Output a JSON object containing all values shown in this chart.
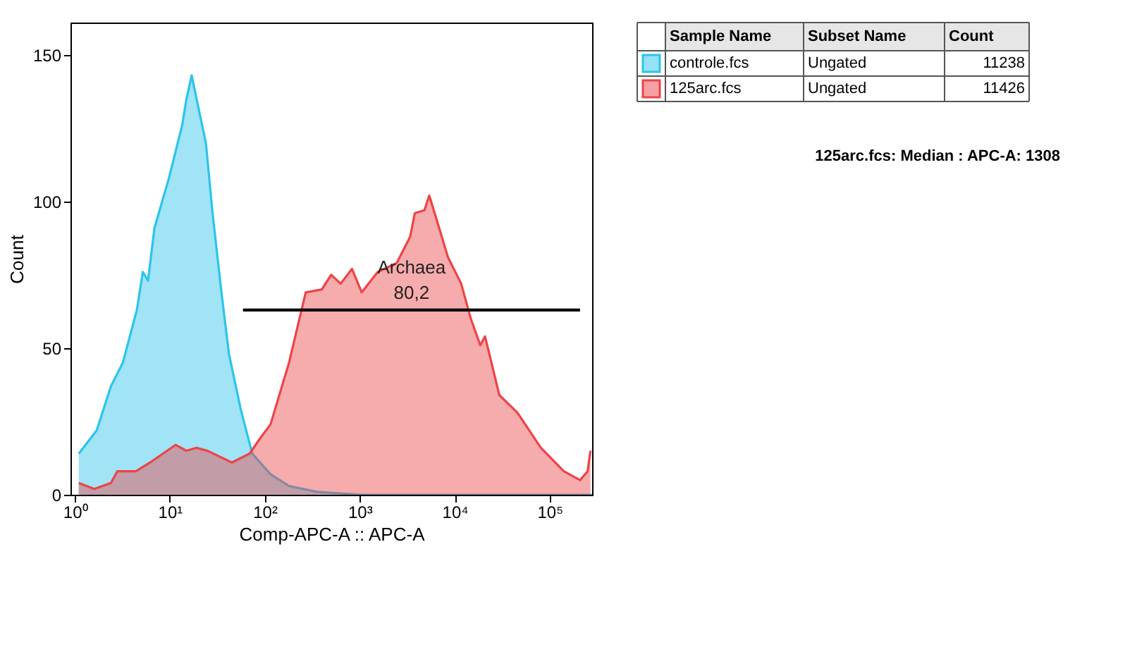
{
  "chart_data": {
    "type": "area",
    "xlabel": "Comp-APC-A :: APC-A",
    "ylabel": "Count",
    "log": "x",
    "xlim": [
      0.9,
      280000
    ],
    "ylim": [
      0,
      161
    ],
    "xticks": [
      {
        "value": 1,
        "label": "10⁰"
      },
      {
        "value": 10,
        "label": "10¹"
      },
      {
        "value": 100,
        "label": "10²"
      },
      {
        "value": 1000,
        "label": "10³"
      },
      {
        "value": 10000,
        "label": "10⁴"
      },
      {
        "value": 100000,
        "label": "10⁵"
      }
    ],
    "yticks": [
      0,
      50,
      100,
      150
    ],
    "grid": false,
    "legend": "right",
    "series": [
      {
        "name": "controle.fcs",
        "color": "#2cc4ec",
        "x": [
          1.1,
          1.7,
          2.4,
          3.2,
          4.5,
          5.2,
          5.9,
          6.9,
          9.8,
          11.5,
          13.5,
          15,
          17,
          20,
          24,
          28,
          35,
          42,
          56,
          74,
          115,
          180,
          355,
          1000,
          10000,
          280000
        ],
        "values": [
          14,
          22,
          37,
          45,
          63,
          76,
          73,
          91,
          108,
          117,
          126,
          135,
          143,
          132,
          120,
          97,
          69,
          48,
          29,
          14,
          7,
          3,
          1,
          0,
          0,
          0
        ]
      },
      {
        "name": "125arc.fcs",
        "color": "#ec4448",
        "x": [
          1.1,
          1.6,
          2.4,
          2.8,
          4.4,
          6.2,
          11.5,
          15,
          19,
          25,
          45,
          69,
          93,
          115,
          180,
          270,
          400,
          500,
          630,
          830,
          1050,
          1550,
          2450,
          3400,
          3800,
          4800,
          5400,
          6300,
          8500,
          11700,
          14800,
          18600,
          20900,
          29500,
          45700,
          81000,
          141000,
          209000,
          251000,
          269000
        ],
        "values": [
          4,
          2,
          4,
          8,
          8,
          11,
          17,
          15,
          16,
          15,
          11,
          14,
          20,
          24,
          45,
          69,
          70,
          75,
          72,
          77,
          69,
          76,
          79,
          88,
          96,
          97,
          102,
          95,
          81,
          72,
          60,
          51,
          54,
          34,
          28,
          16,
          8,
          5,
          8,
          15
        ]
      },
      {
        "type": "line",
        "color": "#000000",
        "x": [
          59,
          209000
        ],
        "values": [
          63,
          63
        ]
      }
    ],
    "annotations": [
      "Sample Name",
      "Subset Name",
      "Count",
      "Ungated",
      "11238",
      "Ungated",
      "11426",
      "125arc.fcs: Median : APC-A: 1308",
      "Archaea",
      "80,2"
    ]
  }
}
